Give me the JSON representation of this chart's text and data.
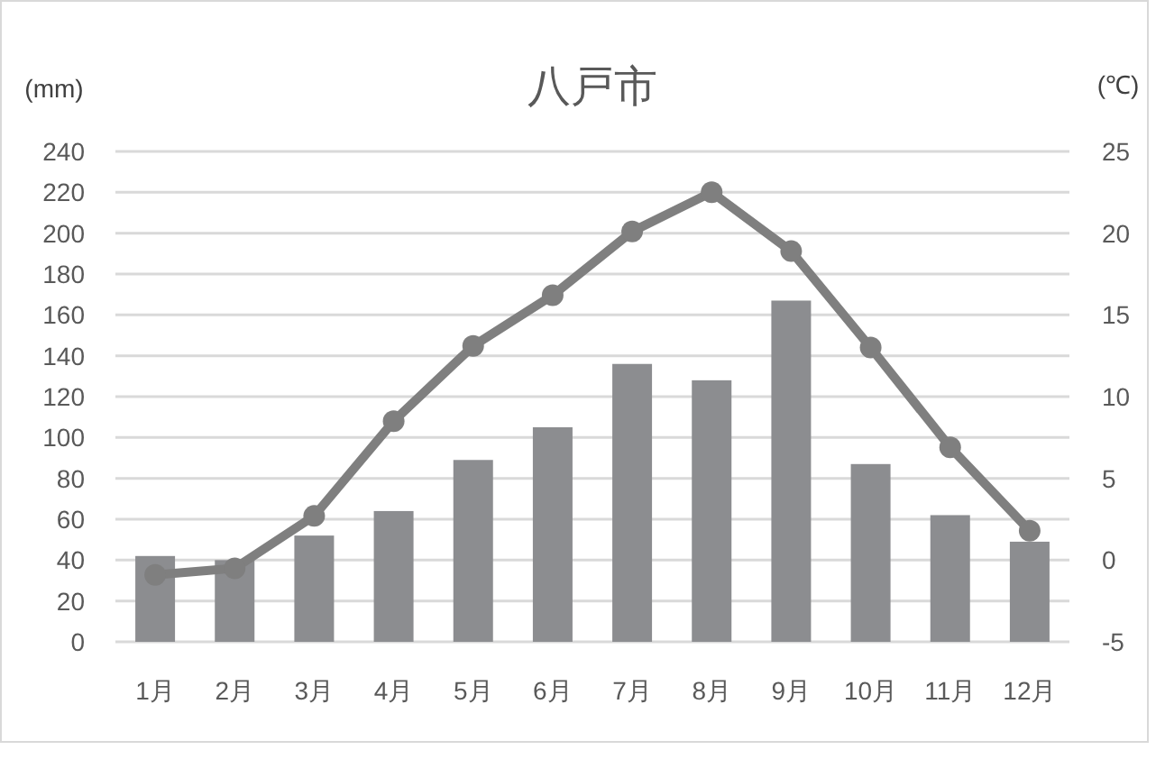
{
  "chart_data": {
    "type": "bar",
    "title": "八戸市",
    "ylabel": "(mm)",
    "y2label": "(℃)",
    "categories": [
      "1月",
      "2月",
      "3月",
      "4月",
      "5月",
      "6月",
      "7月",
      "8月",
      "9月",
      "10月",
      "11月",
      "12月"
    ],
    "series": [
      {
        "color": "#8c8d90",
        "values": [
          42,
          40,
          52,
          64,
          89,
          105,
          136,
          128,
          167,
          87,
          62,
          49
        ]
      },
      {
        "type": "line",
        "axis": "y2",
        "color": "#7f7f7f",
        "marker": "circle",
        "values": [
          -0.9,
          -0.5,
          2.7,
          8.5,
          13.1,
          16.2,
          20.1,
          22.5,
          18.9,
          13.0,
          6.9,
          1.8
        ]
      }
    ],
    "ylim": [
      0,
      240
    ],
    "yticks": [
      0,
      20,
      40,
      60,
      80,
      100,
      120,
      140,
      160,
      180,
      200,
      220,
      240
    ],
    "y2lim": [
      -5,
      25
    ],
    "y2ticks": [
      -5,
      0,
      5,
      10,
      15,
      20,
      25
    ],
    "grid": "y"
  }
}
